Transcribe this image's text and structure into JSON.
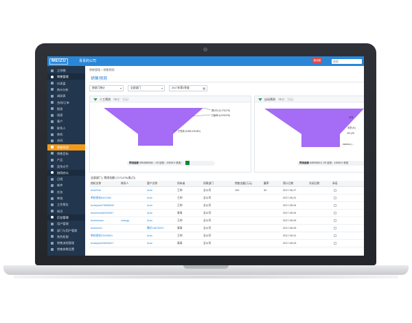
{
  "header": {
    "logo": "MEIZU",
    "company": "青青的公司",
    "badge": "新消息",
    "search_placeholder": "搜索"
  },
  "sidebar": {
    "items": [
      {
        "label": "工作圈",
        "type": "item"
      },
      {
        "label": "销售管理",
        "type": "group"
      },
      {
        "label": "仪表盘",
        "type": "item"
      },
      {
        "label": "统计分析",
        "type": "item"
      },
      {
        "label": "调研表",
        "type": "item"
      },
      {
        "label": "合同/订单",
        "type": "item"
      },
      {
        "label": "报表",
        "type": "item"
      },
      {
        "label": "线索",
        "type": "item"
      },
      {
        "label": "客户",
        "type": "item"
      },
      {
        "label": "联系人",
        "type": "item"
      },
      {
        "label": "商机",
        "type": "item"
      },
      {
        "label": "合同",
        "type": "item"
      },
      {
        "label": "销售预测",
        "type": "active"
      },
      {
        "label": "销售目标",
        "type": "item"
      },
      {
        "label": "产品",
        "type": "item"
      },
      {
        "label": "竞争对手",
        "type": "item"
      },
      {
        "label": "协同办公",
        "type": "group"
      },
      {
        "label": "日程",
        "type": "item"
      },
      {
        "label": "邮件",
        "type": "item"
      },
      {
        "label": "任务",
        "type": "item"
      },
      {
        "label": "审批",
        "type": "item"
      },
      {
        "label": "工作报告",
        "type": "item"
      },
      {
        "label": "知识",
        "type": "item"
      },
      {
        "label": "后台管理",
        "type": "group"
      },
      {
        "label": "用户管理",
        "type": "item"
      },
      {
        "label": "部门与用户管理",
        "type": "item"
      },
      {
        "label": "角色权限",
        "type": "item"
      },
      {
        "label": "销售流程管理",
        "type": "item"
      },
      {
        "label": "销售参数设置",
        "type": "item"
      }
    ]
  },
  "main": {
    "breadcrumb": "销售管理 > 销售预测",
    "title": "销售预测",
    "filters": {
      "dimension": "按部门统计",
      "department": "全部部门",
      "period": "2017年第2季度"
    },
    "panels": [
      {
        "title": "人工预测",
        "unit": "（单位：万元）",
        "labels": [
          "预计中 (3,175,275)",
          "已赢单 (6,029,578)",
          "已完成 (3,884,125,561)"
        ],
        "footer_label": "预测金额",
        "footer_value": "3554855336...",
        "footer_vs": "VS",
        "footer_target_label": "目标：",
        "footer_target_value": "10000.0",
        "footer_status": "状态："
      },
      {
        "title": "自动预测",
        "unit": "（单位：万元）",
        "labels": [
          "手动",
          "无进 (6,)",
          "213 (25",
          "mmbero (…"
        ],
        "footer_label": "预测金额",
        "footer_value": "64592843.1",
        "footer_vs": "VS",
        "footer_target_label": "目标：",
        "footer_target_value": "10000.0",
        "footer_status": "状态"
      }
    ],
    "tabs_text": "全部部门 | 预测金额 (7171275(青)万)",
    "table": {
      "columns": [
        "商机名称",
        "联系人",
        "客户名称",
        "所有者",
        "所属部门",
        "销售金额(万元)",
        "赢率",
        "预计日期",
        "关闭日期",
        "承诺"
      ],
      "rows": [
        [
          "AutoTest",
          "",
          "Auto",
          "王帅",
          "全公司",
          "100",
          "30",
          "2017-06-27",
          "",
          ""
        ],
        [
          "审核商机6421082",
          "",
          "Auto",
          "王帅",
          "全公司",
          "",
          "",
          "2017-05-01",
          "",
          ""
        ],
        [
          "Anticipate75655898",
          "",
          "Auto",
          "王帅",
          "全公司",
          "",
          "",
          "2017-05-04",
          "",
          ""
        ],
        [
          "businesss82049617",
          "",
          "Auto",
          "青青",
          "全公司",
          "",
          "",
          "2017-05-04",
          "",
          ""
        ],
        [
          "businessss",
          "zhangy",
          "Auto",
          "王帅",
          "全公司",
          "",
          "",
          "2017-05-09",
          "",
          ""
        ],
        [
          "business1",
          "",
          "腾讯16675291",
          "青青",
          "全公司",
          "",
          "",
          "2017-05-09",
          "",
          ""
        ],
        [
          "审核商机23328541",
          "",
          "Auto",
          "王帅",
          "全公司",
          "",
          "",
          "2017-05-01",
          "",
          ""
        ],
        [
          "Anticipate28094617",
          "",
          "Auto",
          "青青",
          "全公司",
          "",
          "",
          "2017-05-03",
          "",
          ""
        ]
      ]
    }
  },
  "colors": {
    "topbar": "#2a87d8",
    "sidebar": "#22364d",
    "active": "#f49a1a",
    "funnel": "#a56cf5"
  }
}
